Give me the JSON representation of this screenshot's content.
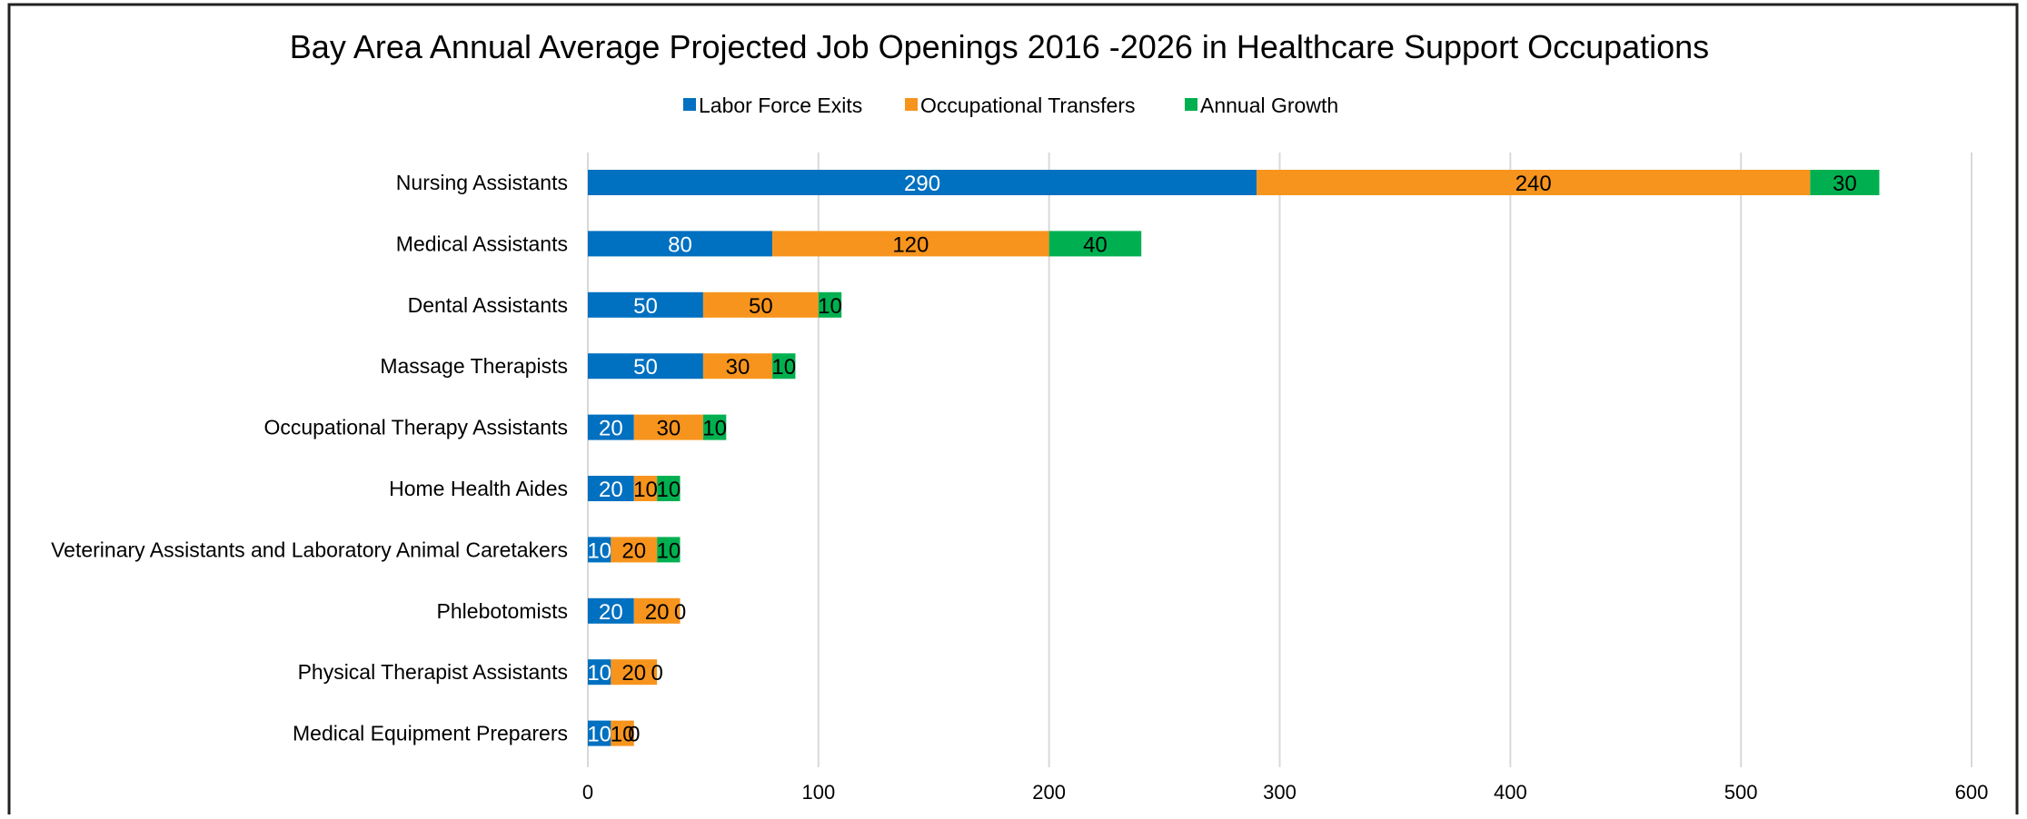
{
  "chart_data": {
    "type": "bar",
    "orientation": "horizontal",
    "stacked": true,
    "title": "Bay Area Annual Average Projected Job Openings 2016 -2026 in Healthcare Support Occupations",
    "xlabel": "",
    "ylabel": "",
    "xlim": [
      0,
      600
    ],
    "x_ticks": [
      "0",
      "100",
      "200",
      "300",
      "400",
      "500",
      "600"
    ],
    "grid": "vertical",
    "legend_position": "top",
    "categories": [
      "Nursing Assistants",
      "Medical Assistants",
      "Dental Assistants",
      "Massage Therapists",
      "Occupational Therapy Assistants",
      "Home Health Aides",
      "Veterinary Assistants and Laboratory Animal Caretakers",
      "Phlebotomists",
      "Physical Therapist Assistants",
      "Medical Equipment Preparers"
    ],
    "series": [
      {
        "name": "Labor Force Exits",
        "color": "#0070C0",
        "label_color": "#ffffff",
        "values": [
          290,
          80,
          50,
          50,
          20,
          20,
          10,
          20,
          10,
          10
        ]
      },
      {
        "name": "Occupational Transfers",
        "color": "#F7941D",
        "label_color": "#000000",
        "values": [
          240,
          120,
          50,
          30,
          30,
          10,
          20,
          20,
          20,
          10
        ]
      },
      {
        "name": "Annual Growth",
        "color": "#00B050",
        "label_color": "#000000",
        "values": [
          30,
          40,
          10,
          10,
          10,
          10,
          10,
          0,
          0,
          0
        ]
      }
    ]
  }
}
